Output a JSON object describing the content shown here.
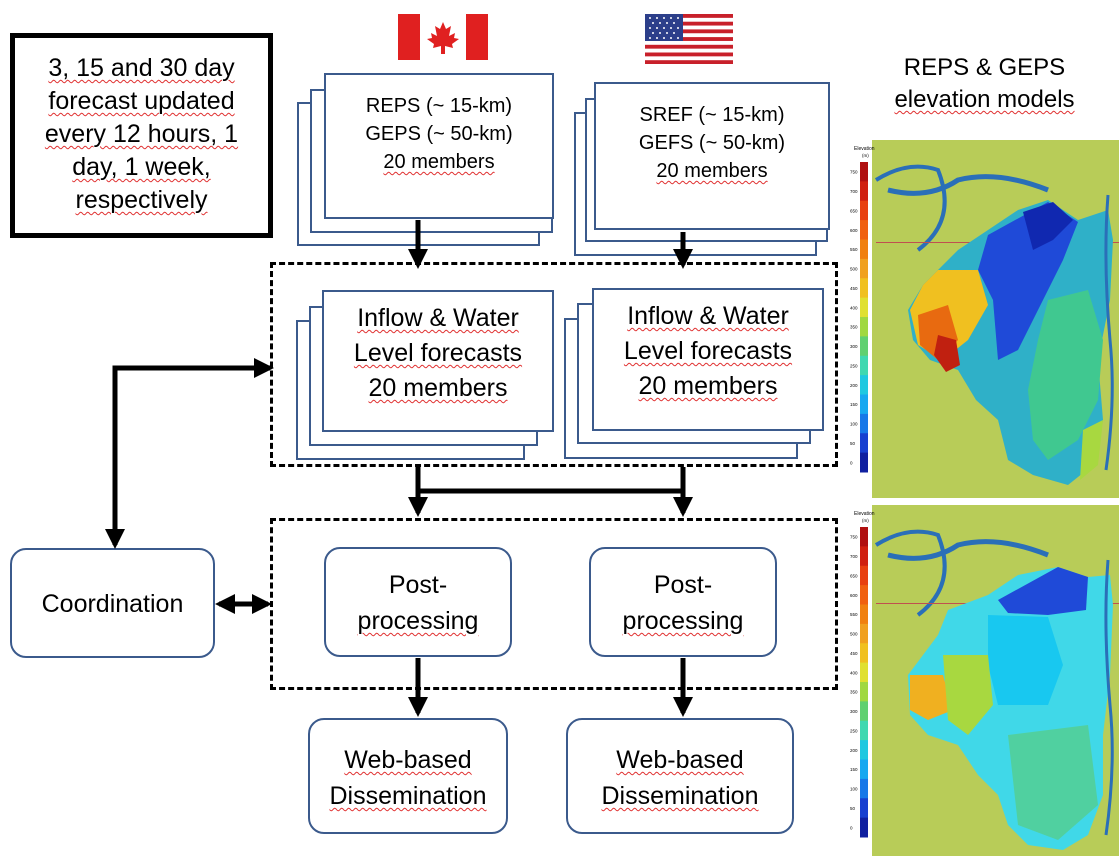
{
  "info_box": {
    "lines": [
      "3, 15 and 30  day",
      "forecast updated",
      "every 12 hours, 1",
      "day, 1 week,",
      "respectively"
    ]
  },
  "flags": {
    "canada": "canada-flag-icon",
    "usa": "usa-flag-icon"
  },
  "model_boxes": {
    "left": [
      "REPS (~ 15-km)",
      "GEPS (~ 50-km)",
      "20 members"
    ],
    "right": [
      "SREF (~ 15-km)",
      "GEFS (~ 50-km)",
      "20 members"
    ]
  },
  "forecast_boxes": {
    "left": [
      "Inflow  & Water",
      "Level forecasts",
      "20 members"
    ],
    "right": [
      "Inflow  & Water",
      "Level forecasts",
      "20 members"
    ]
  },
  "post_boxes": {
    "left": [
      "Post-",
      "processing"
    ],
    "right": [
      "Post-",
      "processing"
    ]
  },
  "web_boxes": {
    "left": [
      "Web-based",
      "Dissemination"
    ],
    "right": [
      "Web-based",
      "Dissemination"
    ]
  },
  "coordination": "Coordination",
  "elevation_title": [
    "REPS & GEPS",
    "elevation  models"
  ],
  "elevation_legend": {
    "title": "Elevation",
    "unit": "(m)",
    "ticks": [
      "750",
      "700",
      "650",
      "600",
      "550",
      "500",
      "450",
      "400",
      "350",
      "300",
      "250",
      "200",
      "150",
      "100",
      "50",
      "0"
    ]
  },
  "colors": {
    "box_border": "#3b5a8c",
    "map_background": "#b8cc58",
    "water": "#2a6fb8"
  }
}
